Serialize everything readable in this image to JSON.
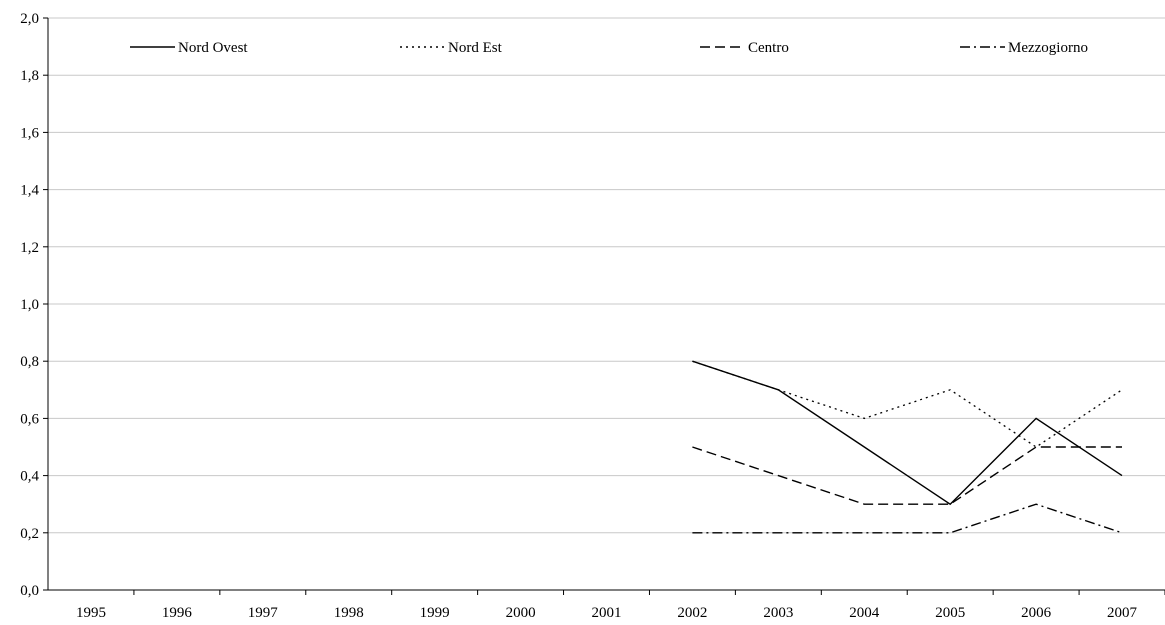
{
  "chart_data": {
    "type": "line",
    "title": "",
    "xlabel": "",
    "ylabel": "",
    "categories": [
      "1995",
      "1996",
      "1997",
      "1998",
      "1999",
      "2000",
      "2001",
      "2002",
      "2003",
      "2004",
      "2005",
      "2006",
      "2007"
    ],
    "yticks": [
      "0,0",
      "0,2",
      "0,4",
      "0,6",
      "0,8",
      "1,0",
      "1,2",
      "1,4",
      "1,6",
      "1,8",
      "2,0"
    ],
    "ylim": [
      0,
      2.0
    ],
    "grid": true,
    "legend_position": "top",
    "series": [
      {
        "name": "Nord Ovest",
        "style": "solid",
        "color": "#000000",
        "values": [
          null,
          null,
          null,
          null,
          null,
          null,
          null,
          0.8,
          0.7,
          0.5,
          0.3,
          0.6,
          0.4
        ]
      },
      {
        "name": "Nord Est",
        "style": "dotted",
        "color": "#000000",
        "values": [
          null,
          null,
          null,
          null,
          null,
          null,
          null,
          0.8,
          0.7,
          0.6,
          0.7,
          0.5,
          0.7
        ]
      },
      {
        "name": "Centro",
        "style": "dashed",
        "color": "#000000",
        "values": [
          null,
          null,
          null,
          null,
          null,
          null,
          null,
          0.5,
          0.4,
          0.3,
          0.3,
          0.5,
          0.5
        ]
      },
      {
        "name": "Mezzogiorno",
        "style": "dashdot",
        "color": "#000000",
        "values": [
          null,
          null,
          null,
          null,
          null,
          null,
          null,
          0.2,
          0.2,
          0.2,
          0.2,
          0.3,
          0.2
        ]
      }
    ]
  }
}
